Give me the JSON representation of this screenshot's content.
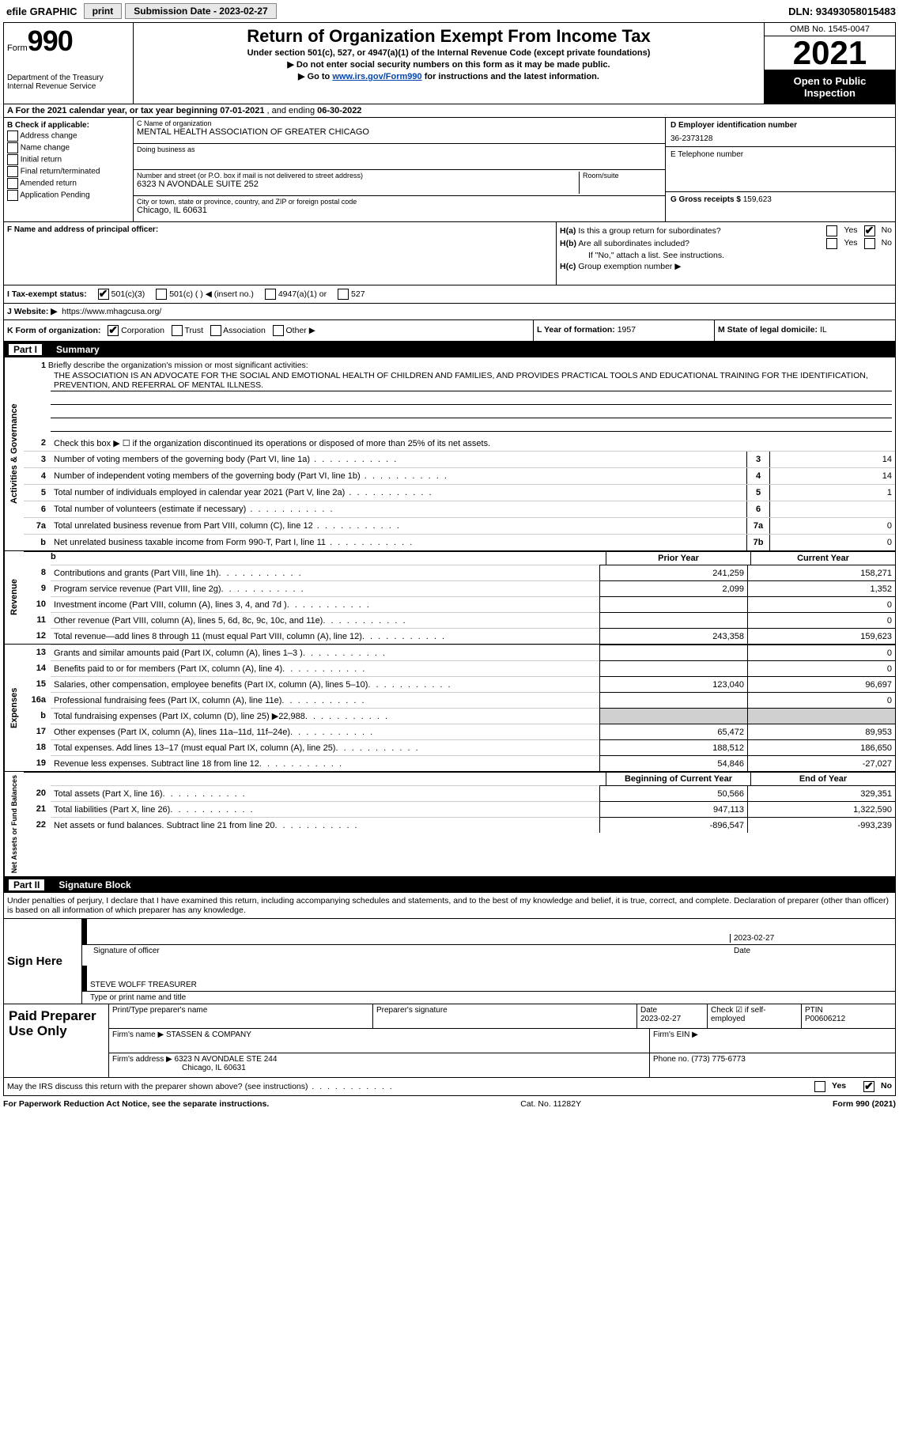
{
  "topbar": {
    "efile": "efile GRAPHIC",
    "print": "print",
    "submission_label": "Submission Date - 2023-02-27",
    "dln": "DLN: 93493058015483"
  },
  "header": {
    "form_label": "Form",
    "form_num": "990",
    "dept": "Department of the Treasury\nInternal Revenue Service",
    "title": "Return of Organization Exempt From Income Tax",
    "sub1": "Under section 501(c), 527, or 4947(a)(1) of the Internal Revenue Code (except private foundations)",
    "sub2": "▶ Do not enter social security numbers on this form as it may be made public.",
    "sub3_pre": "▶ Go to ",
    "sub3_link": "www.irs.gov/Form990",
    "sub3_post": " for instructions and the latest information.",
    "omb": "OMB No. 1545-0047",
    "year": "2021",
    "inspection": "Open to Public Inspection"
  },
  "row_a": {
    "text_pre": "A For the 2021 calendar year, or tax year beginning ",
    "begin": "07-01-2021",
    "mid": " , and ending ",
    "end": "06-30-2022"
  },
  "col_b": {
    "label": "B Check if applicable:",
    "items": [
      "Address change",
      "Name change",
      "Initial return",
      "Final return/terminated",
      "Amended return",
      "Application Pending"
    ]
  },
  "col_c": {
    "name_lbl": "C Name of organization",
    "name": "MENTAL HEALTH ASSOCIATION OF GREATER CHICAGO",
    "dba_lbl": "Doing business as",
    "dba": "",
    "street_lbl": "Number and street (or P.O. box if mail is not delivered to street address)",
    "street": "6323 N AVONDALE SUITE 252",
    "room_lbl": "Room/suite",
    "city_lbl": "City or town, state or province, country, and ZIP or foreign postal code",
    "city": "Chicago, IL  60631"
  },
  "col_de": {
    "d_lbl": "D Employer identification number",
    "d_val": "36-2373128",
    "e_lbl": "E Telephone number",
    "e_val": "",
    "g_lbl": "G Gross receipts $",
    "g_val": "159,623"
  },
  "section_f": {
    "f_lbl": "F Name and address of principal officer:",
    "ha_lbl": "H(a)  Is this a group return for subordinates?",
    "hb_lbl": "H(b)  Are all subordinates included?",
    "hb_note": "If \"No,\" attach a list. See instructions.",
    "hc_lbl": "H(c)  Group exemption number ▶",
    "yes": "Yes",
    "no": "No"
  },
  "tax": {
    "i_lbl": "I   Tax-exempt status:",
    "o1": "501(c)(3)",
    "o2": "501(c) (  ) ◀ (insert no.)",
    "o3": "4947(a)(1) or",
    "o4": "527"
  },
  "row_j": {
    "lbl": "J   Website: ▶",
    "val": "https://www.mhagcusa.org/"
  },
  "row_kl": {
    "k_lbl": "K Form of organization:",
    "k_opts": [
      "Corporation",
      "Trust",
      "Association",
      "Other ▶"
    ],
    "l_lbl": "L Year of formation:",
    "l_val": "1957",
    "m_lbl": "M State of legal domicile:",
    "m_val": "IL"
  },
  "part1": {
    "num": "Part I",
    "title": "Summary"
  },
  "gov": {
    "side": "Activities & Governance",
    "l1_lbl": "Briefly describe the organization's mission or most significant activities:",
    "l1_val": "THE ASSOCIATION IS AN ADVOCATE FOR THE SOCIAL AND EMOTIONAL HEALTH OF CHILDREN AND FAMILIES, AND PROVIDES PRACTICAL TOOLS AND EDUCATIONAL TRAINING FOR THE IDENTIFICATION, PREVENTION, AND REFERRAL OF MENTAL ILLNESS.",
    "l2": "Check this box ▶ ☐  if the organization discontinued its operations or disposed of more than 25% of its net assets.",
    "rows": [
      {
        "n": "3",
        "t": "Number of voting members of the governing body (Part VI, line 1a)",
        "b": "3",
        "v": "14"
      },
      {
        "n": "4",
        "t": "Number of independent voting members of the governing body (Part VI, line 1b)",
        "b": "4",
        "v": "14"
      },
      {
        "n": "5",
        "t": "Total number of individuals employed in calendar year 2021 (Part V, line 2a)",
        "b": "5",
        "v": "1"
      },
      {
        "n": "6",
        "t": "Total number of volunteers (estimate if necessary)",
        "b": "6",
        "v": ""
      },
      {
        "n": "7a",
        "t": "Total unrelated business revenue from Part VIII, column (C), line 12",
        "b": "7a",
        "v": "0"
      },
      {
        "n": "b",
        "t": "Net unrelated business taxable income from Form 990-T, Part I, line 11",
        "b": "7b",
        "v": "0"
      }
    ]
  },
  "pycy": {
    "prior": "Prior Year",
    "current": "Current Year",
    "begin": "Beginning of Current Year",
    "end": "End of Year"
  },
  "rev": {
    "side": "Revenue",
    "rows": [
      {
        "n": "8",
        "t": "Contributions and grants (Part VIII, line 1h)",
        "p": "241,259",
        "c": "158,271"
      },
      {
        "n": "9",
        "t": "Program service revenue (Part VIII, line 2g)",
        "p": "2,099",
        "c": "1,352"
      },
      {
        "n": "10",
        "t": "Investment income (Part VIII, column (A), lines 3, 4, and 7d )",
        "p": "",
        "c": "0"
      },
      {
        "n": "11",
        "t": "Other revenue (Part VIII, column (A), lines 5, 6d, 8c, 9c, 10c, and 11e)",
        "p": "",
        "c": "0"
      },
      {
        "n": "12",
        "t": "Total revenue—add lines 8 through 11 (must equal Part VIII, column (A), line 12)",
        "p": "243,358",
        "c": "159,623"
      }
    ]
  },
  "exp": {
    "side": "Expenses",
    "rows": [
      {
        "n": "13",
        "t": "Grants and similar amounts paid (Part IX, column (A), lines 1–3 )",
        "p": "",
        "c": "0"
      },
      {
        "n": "14",
        "t": "Benefits paid to or for members (Part IX, column (A), line 4)",
        "p": "",
        "c": "0"
      },
      {
        "n": "15",
        "t": "Salaries, other compensation, employee benefits (Part IX, column (A), lines 5–10)",
        "p": "123,040",
        "c": "96,697"
      },
      {
        "n": "16a",
        "t": "Professional fundraising fees (Part IX, column (A), line 11e)",
        "p": "",
        "c": "0"
      },
      {
        "n": "b",
        "t": "Total fundraising expenses (Part IX, column (D), line 25) ▶22,988",
        "p": "shade",
        "c": "shade"
      },
      {
        "n": "17",
        "t": "Other expenses (Part IX, column (A), lines 11a–11d, 11f–24e)",
        "p": "65,472",
        "c": "89,953"
      },
      {
        "n": "18",
        "t": "Total expenses. Add lines 13–17 (must equal Part IX, column (A), line 25)",
        "p": "188,512",
        "c": "186,650"
      },
      {
        "n": "19",
        "t": "Revenue less expenses. Subtract line 18 from line 12",
        "p": "54,846",
        "c": "-27,027"
      }
    ]
  },
  "net": {
    "side": "Net Assets or Fund Balances",
    "rows": [
      {
        "n": "20",
        "t": "Total assets (Part X, line 16)",
        "p": "50,566",
        "c": "329,351"
      },
      {
        "n": "21",
        "t": "Total liabilities (Part X, line 26)",
        "p": "947,113",
        "c": "1,322,590"
      },
      {
        "n": "22",
        "t": "Net assets or fund balances. Subtract line 21 from line 20",
        "p": "-896,547",
        "c": "-993,239"
      }
    ]
  },
  "part2": {
    "num": "Part II",
    "title": "Signature Block",
    "decl": "Under penalties of perjury, I declare that I have examined this return, including accompanying schedules and statements, and to the best of my knowledge and belief, it is true, correct, and complete. Declaration of preparer (other than officer) is based on all information of which preparer has any knowledge."
  },
  "sign": {
    "here": "Sign Here",
    "sig_lbl": "Signature of officer",
    "date_lbl": "Date",
    "date_val": "2023-02-27",
    "name_val": "STEVE WOLFF TREASURER",
    "name_lbl": "Type or print name and title"
  },
  "prep": {
    "title": "Paid Preparer Use Only",
    "r1": {
      "c1_lbl": "Print/Type preparer's name",
      "c2_lbl": "Preparer's signature",
      "c3_lbl": "Date",
      "c3_val": "2023-02-27",
      "c4_lbl": "Check ☑ if self-employed",
      "c5_lbl": "PTIN",
      "c5_val": "P00606212"
    },
    "r2": {
      "lbl": "Firm's name    ▶",
      "val": "STASSEN & COMPANY",
      "ein_lbl": "Firm's EIN ▶"
    },
    "r3": {
      "lbl": "Firm's address ▶",
      "val1": "6323 N AVONDALE STE 244",
      "val2": "Chicago, IL  60631",
      "ph_lbl": "Phone no.",
      "ph_val": "(773) 775-6773"
    }
  },
  "footer": {
    "q": "May the IRS discuss this return with the preparer shown above? (see instructions)",
    "pra": "For Paperwork Reduction Act Notice, see the separate instructions.",
    "cat": "Cat. No. 11282Y",
    "form": "Form 990 (2021)"
  }
}
